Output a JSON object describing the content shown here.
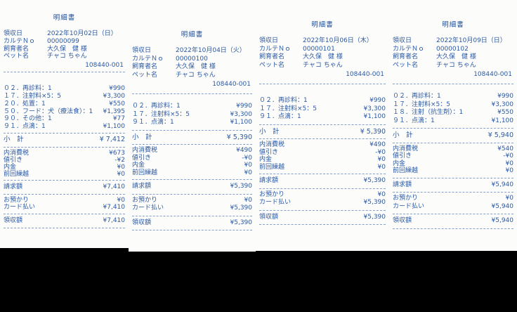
{
  "colors": {
    "page_background": "#000000",
    "paper": "#fcfcfa",
    "ink_blue": "#2b59a4"
  },
  "receipts": [
    {
      "title": "明細書",
      "header": {
        "date_label": "領収日",
        "date_value": "2022年10月02日（日）",
        "karte_label": "カルテＮｏ",
        "karte_value": "00000099",
        "owner_label": "飼育者名",
        "owner_value": "大久保　健 様",
        "pet_label": "ペット名",
        "pet_value": "チャコ ちゃん",
        "slip_code": "108440-001"
      },
      "items": [
        {
          "label": "０２．再診料：1",
          "amount": "¥990"
        },
        {
          "label": "１７．注射料×5：5",
          "amount": "¥3,300"
        },
        {
          "label": "２０．処置：1",
          "amount": "¥550"
        },
        {
          "label": "５０．フード：犬（療法食）：1",
          "amount": "¥1,395"
        },
        {
          "label": "９０．その他：1",
          "amount": "¥77"
        },
        {
          "label": "９１．点滴：1",
          "amount": "¥1,100"
        }
      ],
      "subtotal": {
        "label": "小　計",
        "amount": "¥ 7,412"
      },
      "adjustments": [
        {
          "label": "内消費税",
          "amount": "¥673"
        },
        {
          "label": "値引き",
          "amount": "-¥2"
        },
        {
          "label": "内金",
          "amount": "¥0"
        },
        {
          "label": "前回繰越",
          "amount": "¥0"
        }
      ],
      "billed": {
        "label": "請求額",
        "amount": "¥7,410"
      },
      "payments": [
        {
          "label": "お預かり",
          "amount": "¥0"
        },
        {
          "label": "カード払い",
          "amount": "¥7,410"
        }
      ],
      "received": {
        "label": "領収額",
        "amount": "¥7,410"
      }
    },
    {
      "title": "明細書",
      "header": {
        "date_label": "領収日",
        "date_value": "2022年10月04日（火）",
        "karte_label": "カルテＮｏ",
        "karte_value": "00000100",
        "owner_label": "飼育者名",
        "owner_value": "大久保　健 様",
        "pet_label": "ペット名",
        "pet_value": "チャコ ちゃん",
        "slip_code": "108440-001"
      },
      "items": [
        {
          "label": "０２．再診料：1",
          "amount": "¥990"
        },
        {
          "label": "１７．注射料×5：5",
          "amount": "¥3,300"
        },
        {
          "label": "９１．点滴：1",
          "amount": "¥1,100"
        }
      ],
      "subtotal": {
        "label": "小　計",
        "amount": "¥ 5,390"
      },
      "adjustments": [
        {
          "label": "内消費税",
          "amount": "¥490"
        },
        {
          "label": "値引き",
          "amount": "-¥0"
        },
        {
          "label": "内金",
          "amount": "¥0"
        },
        {
          "label": "前回繰越",
          "amount": "¥0"
        }
      ],
      "billed": {
        "label": "請求額",
        "amount": "¥5,390"
      },
      "payments": [
        {
          "label": "お預かり",
          "amount": "¥0"
        },
        {
          "label": "カード払い",
          "amount": "¥5,390"
        }
      ],
      "received": {
        "label": "領収額",
        "amount": "¥5,390"
      }
    },
    {
      "title": "明細書",
      "header": {
        "date_label": "領収日",
        "date_value": "2022年10月06日（木）",
        "karte_label": "カルテＮｏ",
        "karte_value": "00000101",
        "owner_label": "飼育者名",
        "owner_value": "大久保　健 様",
        "pet_label": "ペット名",
        "pet_value": "チャコ ちゃん",
        "slip_code": "108440-001"
      },
      "items": [
        {
          "label": "０２．再診料：1",
          "amount": "¥990"
        },
        {
          "label": "１７．注射料×5：5",
          "amount": "¥3,300"
        },
        {
          "label": "９１．点滴：1",
          "amount": "¥1,100"
        }
      ],
      "subtotal": {
        "label": "小　計",
        "amount": "¥ 5,390"
      },
      "adjustments": [
        {
          "label": "内消費税",
          "amount": "¥490"
        },
        {
          "label": "値引き",
          "amount": "-¥0"
        },
        {
          "label": "内金",
          "amount": "¥0"
        },
        {
          "label": "前回繰越",
          "amount": "¥0"
        }
      ],
      "billed": {
        "label": "請求額",
        "amount": "¥5,390"
      },
      "payments": [
        {
          "label": "お預かり",
          "amount": "¥0"
        },
        {
          "label": "カード払い",
          "amount": "¥5,390"
        }
      ],
      "received": {
        "label": "領収額",
        "amount": "¥5,390"
      }
    },
    {
      "title": "明細書",
      "header": {
        "date_label": "領収日",
        "date_value": "2022年10月09日（日）",
        "karte_label": "カルテＮｏ",
        "karte_value": "00000102",
        "owner_label": "飼育者名",
        "owner_value": "大久保　健 様",
        "pet_label": "ペット名",
        "pet_value": "チャコ ちゃん",
        "slip_code": "108440-001"
      },
      "items": [
        {
          "label": "０２．再診料：1",
          "amount": "¥990"
        },
        {
          "label": "１７．注射料×5：5",
          "amount": "¥3,300"
        },
        {
          "label": "１８．注射（抗生剤）：1",
          "amount": "¥550"
        },
        {
          "label": "９１．点滴：1",
          "amount": "¥1,100"
        }
      ],
      "subtotal": {
        "label": "小　計",
        "amount": "¥ 5,940"
      },
      "adjustments": [
        {
          "label": "内消費税",
          "amount": "¥540"
        },
        {
          "label": "値引き",
          "amount": "-¥0"
        },
        {
          "label": "内金",
          "amount": "¥0"
        },
        {
          "label": "前回繰越",
          "amount": "¥0"
        }
      ],
      "billed": {
        "label": "請求額",
        "amount": "¥5,940"
      },
      "payments": [
        {
          "label": "お預かり",
          "amount": "¥0"
        },
        {
          "label": "カード払い",
          "amount": "¥5,940"
        }
      ],
      "received": {
        "label": "領収額",
        "amount": "¥5,940"
      }
    }
  ]
}
